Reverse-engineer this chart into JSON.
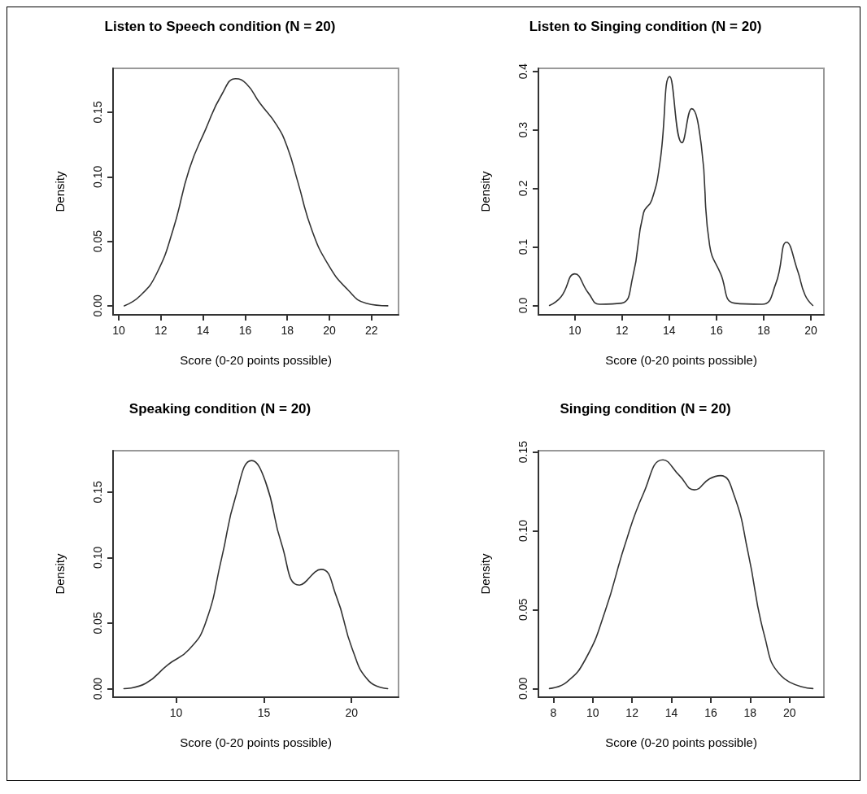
{
  "chart_data": [
    {
      "type": "line",
      "title": "Listen to Speech condition (N = 20)",
      "xlabel": "Score (0-20 points possible)",
      "ylabel": "Density",
      "marker": "none",
      "line_style": "solid",
      "series": [
        {
          "color": "#333333",
          "x": [
            10.26,
            11.03,
            11.8,
            12.58,
            13.35,
            14.13,
            14.9,
            15.55,
            16.06,
            16.7,
            17.5,
            18.0,
            18.5,
            19.16,
            19.94,
            20.84,
            21.74,
            22.77
          ],
          "values": [
            0,
            0.008,
            0.025,
            0.059,
            0.106,
            0.137,
            0.164,
            0.176,
            0.172,
            0.157,
            0.14,
            0.123,
            0.096,
            0.059,
            0.032,
            0.013,
            0.002,
            0
          ]
        }
      ],
      "xlim": [
        9.73,
        23.28
      ],
      "xticks": [
        10,
        12,
        14,
        16,
        18,
        20,
        22
      ],
      "ylim": [
        -0.007,
        0.184
      ],
      "yticks": [
        {
          "value": 0,
          "label": "0.00"
        },
        {
          "value": 0.05,
          "label": "0.05"
        },
        {
          "value": 0.1,
          "label": "0.10"
        },
        {
          "value": 0.15,
          "label": "0.15"
        }
      ]
    },
    {
      "type": "line",
      "title": "Listen to Singing condition (N = 20)",
      "xlabel": "Score (0-20 points possible)",
      "ylabel": "Density",
      "marker": "none",
      "line_style": "solid",
      "series": [
        {
          "color": "#333333",
          "x": [
            8.93,
            9.42,
            10,
            10.58,
            11.05,
            11.98,
            12.45,
            12.91,
            13.26,
            13.61,
            14.02,
            14.54,
            14.95,
            15.36,
            15.71,
            16.18,
            16.76,
            17.93,
            18.51,
            18.97,
            19.44,
            19.75,
            20.08
          ],
          "values": [
            0,
            0.015,
            0.054,
            0.021,
            0.002,
            0.004,
            0.048,
            0.158,
            0.18,
            0.245,
            0.391,
            0.278,
            0.336,
            0.273,
            0.103,
            0.054,
            0.004,
            0.002,
            0.037,
            0.108,
            0.059,
            0.018,
            0
          ]
        }
      ],
      "xlim": [
        8.46,
        20.55
      ],
      "xticks": [
        10,
        12,
        14,
        16,
        18,
        20
      ],
      "ylim": [
        -0.016,
        0.405
      ],
      "yticks": [
        {
          "value": 0,
          "label": "0.0"
        },
        {
          "value": 0.1,
          "label": "0.1"
        },
        {
          "value": 0.2,
          "label": "0.2"
        },
        {
          "value": 0.3,
          "label": "0.3"
        },
        {
          "value": 0.4,
          "label": "0.4"
        }
      ]
    },
    {
      "type": "line",
      "title": "Speaking condition (N = 20)",
      "xlabel": "Score (0-20 points possible)",
      "ylabel": "Density",
      "marker": "none",
      "line_style": "solid",
      "series": [
        {
          "color": "#333333",
          "x": [
            7.02,
            8.26,
            9.5,
            10.74,
            11.67,
            12.6,
            13.38,
            14.31,
            15.09,
            16.02,
            17.03,
            18.27,
            19.12,
            20.05,
            20.98,
            22.06
          ],
          "values": [
            0,
            0.004,
            0.018,
            0.03,
            0.05,
            0.1,
            0.146,
            0.174,
            0.158,
            0.11,
            0.079,
            0.091,
            0.071,
            0.03,
            0.006,
            0
          ]
        }
      ],
      "xlim": [
        6.4,
        22.68
      ],
      "xticks": [
        10,
        15,
        20
      ],
      "ylim": [
        -0.0065,
        0.1815
      ],
      "yticks": [
        {
          "value": 0,
          "label": "0.00"
        },
        {
          "value": 0.05,
          "label": "0.05"
        },
        {
          "value": 0.1,
          "label": "0.10"
        },
        {
          "value": 0.15,
          "label": "0.15"
        }
      ]
    },
    {
      "type": "line",
      "title": "Singing condition (N = 20)",
      "xlabel": "Score (0-20 points possible)",
      "ylabel": "Density",
      "marker": "none",
      "line_style": "solid",
      "series": [
        {
          "color": "#333333",
          "x": [
            7.8,
            8.67,
            9.65,
            10.63,
            11.61,
            12.59,
            13.57,
            14.41,
            15.17,
            15.94,
            16.5,
            17.2,
            17.9,
            18.74,
            19.58,
            21.19
          ],
          "values": [
            0,
            0.004,
            0.019,
            0.049,
            0.09,
            0.124,
            0.145,
            0.135,
            0.126,
            0.133,
            0.135,
            0.122,
            0.086,
            0.033,
            0.008,
            0
          ]
        }
      ],
      "xlim": [
        7.24,
        21.75
      ],
      "xticks": [
        8,
        10,
        12,
        14,
        16,
        18,
        20
      ],
      "ylim": [
        -0.0055,
        0.1508
      ],
      "yticks": [
        {
          "value": 0,
          "label": "0.00"
        },
        {
          "value": 0.05,
          "label": "0.05"
        },
        {
          "value": 0.1,
          "label": "0.10"
        },
        {
          "value": 0.15,
          "label": "0.15"
        }
      ]
    }
  ]
}
